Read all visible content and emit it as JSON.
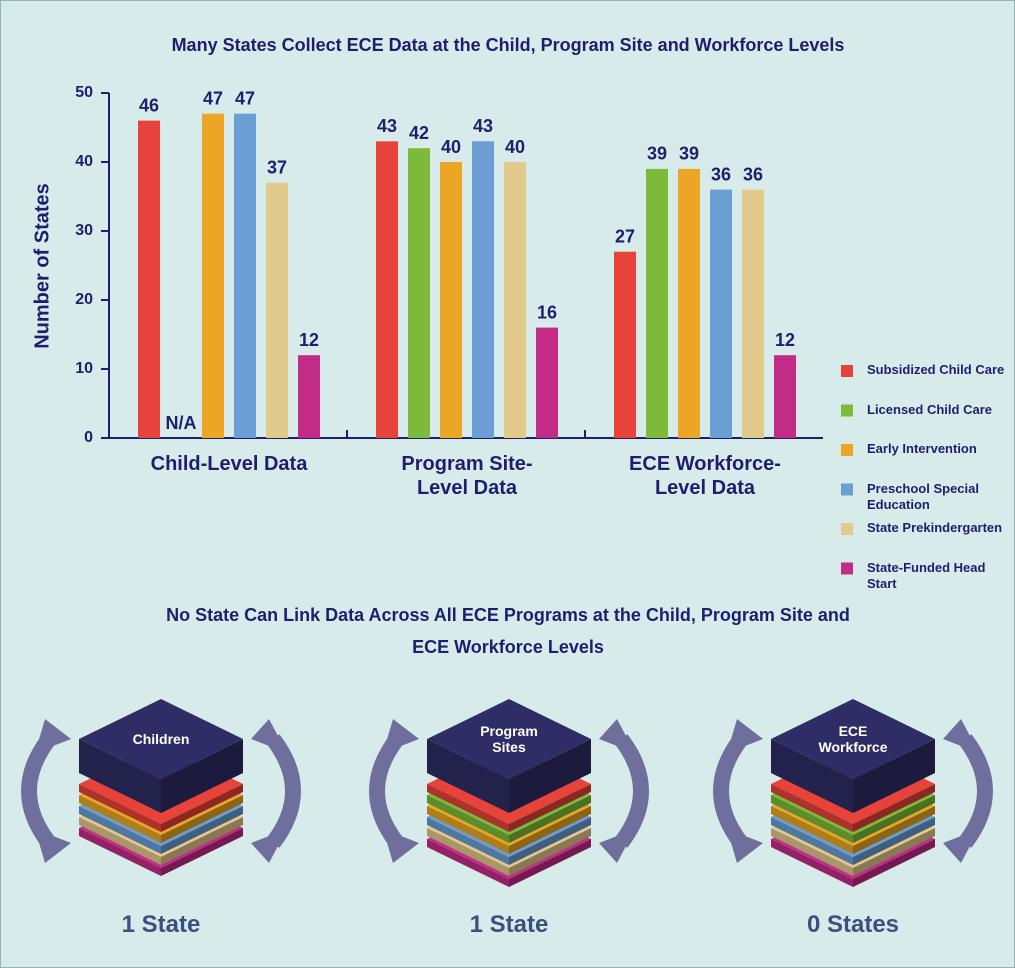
{
  "chart_data": {
    "type": "bar",
    "title": "Many States Collect ECE Data at the Child, Program Site and Workforce Levels",
    "y_label": "Number of States",
    "categories": [
      "Child-Level Data",
      "Program Site-Level Data",
      "ECE Workforce-Level Data"
    ],
    "series": [
      {
        "name": "Subsidized Child Care",
        "color": "#e8433a",
        "values": [
          46,
          43,
          27
        ]
      },
      {
        "name": "Licensed Child Care",
        "color": "#7cba3c",
        "values": [
          null,
          42,
          39
        ],
        "value_labels": [
          "N/A",
          "42",
          "39"
        ]
      },
      {
        "name": "Early Intervention",
        "color": "#eaa624",
        "values": [
          47,
          40,
          39
        ]
      },
      {
        "name": "Preschool Special Education",
        "color": "#6b9ed4",
        "values": [
          47,
          43,
          36
        ]
      },
      {
        "name": "State Prekindergarten",
        "color": "#e2c98c",
        "values": [
          37,
          40,
          36
        ]
      },
      {
        "name": "State-Funded Head Start",
        "color": "#c22c86",
        "values": [
          12,
          16,
          12
        ]
      }
    ],
    "ylim": [
      0,
      50
    ],
    "yticks": [
      0,
      10,
      20,
      30,
      40,
      50
    ],
    "grid": false,
    "legend": "right"
  },
  "linkage": {
    "title": "No State Can Link Data Across All ECE Programs at the Child, Program Site and ECE Workforce Levels",
    "stacks": [
      {
        "label": "Children",
        "caption": "1 State"
      },
      {
        "label": "Program Sites",
        "caption": "1 State"
      },
      {
        "label": "ECE Workforce",
        "caption": "0 States"
      }
    ]
  }
}
